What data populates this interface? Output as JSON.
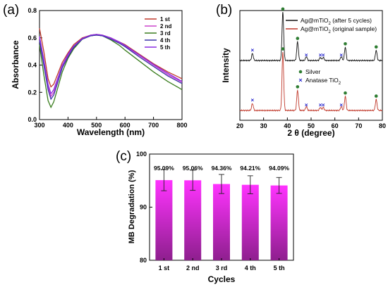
{
  "chart_data": [
    {
      "panel": "(a)",
      "type": "line",
      "xlabel": "Wavelength (nm)",
      "ylabel": "Absorbance",
      "xlim": [
        300,
        800
      ],
      "ylim": [
        0,
        0.8
      ],
      "xticks": [
        "300",
        "400",
        "500",
        "600",
        "700",
        "800"
      ],
      "yticks": [
        "0.0",
        "0.2",
        "0.4",
        "0.6",
        "0.8"
      ],
      "legend_position": "top-right",
      "series": [
        {
          "name": "1 st",
          "color": "#c0392b",
          "x": [
            300,
            315,
            330,
            340,
            350,
            365,
            380,
            400,
            420,
            450,
            480,
            500,
            520,
            550,
            580,
            600,
            650,
            700,
            750,
            800
          ],
          "y": [
            0.67,
            0.5,
            0.3,
            0.24,
            0.26,
            0.34,
            0.42,
            0.49,
            0.55,
            0.6,
            0.62,
            0.625,
            0.62,
            0.6,
            0.57,
            0.55,
            0.48,
            0.41,
            0.35,
            0.3
          ]
        },
        {
          "name": "2 nd",
          "color": "#cc44cc",
          "x": [
            300,
            315,
            330,
            340,
            350,
            365,
            380,
            400,
            420,
            450,
            480,
            500,
            520,
            550,
            580,
            600,
            650,
            700,
            750,
            800
          ],
          "y": [
            0.6,
            0.42,
            0.24,
            0.17,
            0.2,
            0.3,
            0.39,
            0.47,
            0.53,
            0.59,
            0.615,
            0.62,
            0.615,
            0.595,
            0.565,
            0.54,
            0.47,
            0.4,
            0.33,
            0.275
          ]
        },
        {
          "name": "3 rd",
          "color": "#3a7d1e",
          "x": [
            300,
            315,
            330,
            340,
            350,
            365,
            380,
            400,
            420,
            450,
            480,
            500,
            520,
            550,
            580,
            600,
            650,
            700,
            750,
            800
          ],
          "y": [
            0.55,
            0.33,
            0.14,
            0.09,
            0.13,
            0.24,
            0.35,
            0.45,
            0.52,
            0.59,
            0.615,
            0.62,
            0.615,
            0.585,
            0.545,
            0.51,
            0.43,
            0.35,
            0.28,
            0.22
          ]
        },
        {
          "name": "4 th",
          "color": "#3a35a8",
          "x": [
            300,
            315,
            330,
            340,
            350,
            365,
            380,
            400,
            420,
            450,
            480,
            500,
            520,
            550,
            580,
            600,
            650,
            700,
            750,
            800
          ],
          "y": [
            0.58,
            0.4,
            0.22,
            0.15,
            0.18,
            0.28,
            0.38,
            0.46,
            0.53,
            0.59,
            0.615,
            0.62,
            0.615,
            0.59,
            0.56,
            0.535,
            0.46,
            0.39,
            0.32,
            0.265
          ]
        },
        {
          "name": "5 th",
          "color": "#8a2be2",
          "x": [
            300,
            315,
            330,
            340,
            350,
            365,
            380,
            400,
            420,
            450,
            480,
            500,
            520,
            550,
            580,
            600,
            650,
            700,
            750,
            800
          ],
          "y": [
            0.61,
            0.44,
            0.26,
            0.19,
            0.22,
            0.31,
            0.4,
            0.48,
            0.54,
            0.595,
            0.62,
            0.625,
            0.62,
            0.6,
            0.57,
            0.545,
            0.475,
            0.405,
            0.34,
            0.28
          ]
        }
      ]
    },
    {
      "panel": "(b)",
      "type": "line",
      "xlabel": "2 θ (degree)",
      "ylabel": "Intensity",
      "xlim": [
        20,
        80
      ],
      "xticks": [
        "20",
        "30",
        "40",
        "50",
        "60",
        "70",
        "80"
      ],
      "legend_position": "top-right",
      "series": [
        {
          "name_parts": [
            "Ag@mTiO",
            "2",
            " (after 5 cycles)"
          ],
          "color": "#111111",
          "peaks": [
            25.3,
            38.1,
            44.3,
            48.0,
            53.9,
            55.1,
            62.7,
            64.4,
            77.4
          ],
          "peak_heights": [
            0.09,
            0.62,
            0.24,
            0.05,
            0.04,
            0.04,
            0.05,
            0.17,
            0.13
          ]
        },
        {
          "name_parts": [
            "Ag@mTiO",
            "2",
            " (original sample)"
          ],
          "color": "#c0392b",
          "peaks": [
            25.3,
            38.1,
            44.3,
            48.0,
            53.9,
            55.1,
            62.7,
            64.4,
            77.4
          ],
          "peak_heights": [
            0.09,
            0.75,
            0.26,
            0.05,
            0.04,
            0.04,
            0.05,
            0.18,
            0.14
          ]
        }
      ],
      "markers": {
        "silver": {
          "label": "Silver",
          "color": "#2e7d32",
          "positions": [
            38.1,
            44.3,
            64.4,
            77.4
          ]
        },
        "anatase": {
          "label_parts": [
            "Anatase TiO",
            "2"
          ],
          "color": "#2222cc",
          "positions": [
            25.3,
            48.0,
            53.9,
            55.1,
            62.7
          ]
        }
      }
    },
    {
      "panel": "(c)",
      "type": "bar",
      "xlabel": "Cycles",
      "ylabel": "MB Degradation (%)",
      "categories": [
        "1 st",
        "2 nd",
        "3 rd",
        "4 th",
        "5 th"
      ],
      "values": [
        95.09,
        95.06,
        94.36,
        94.21,
        94.09
      ],
      "value_labels": [
        "95.09%",
        "95.06%",
        "94.36%",
        "94.21%",
        "94.09%"
      ],
      "errors": [
        2.0,
        1.9,
        1.8,
        1.7,
        1.5
      ],
      "ylim": [
        80,
        100
      ],
      "yticks": [
        "80",
        "90",
        "100"
      ],
      "bar_color_top": "#ff33ff",
      "bar_color_bottom": "#8e1f8e"
    }
  ]
}
